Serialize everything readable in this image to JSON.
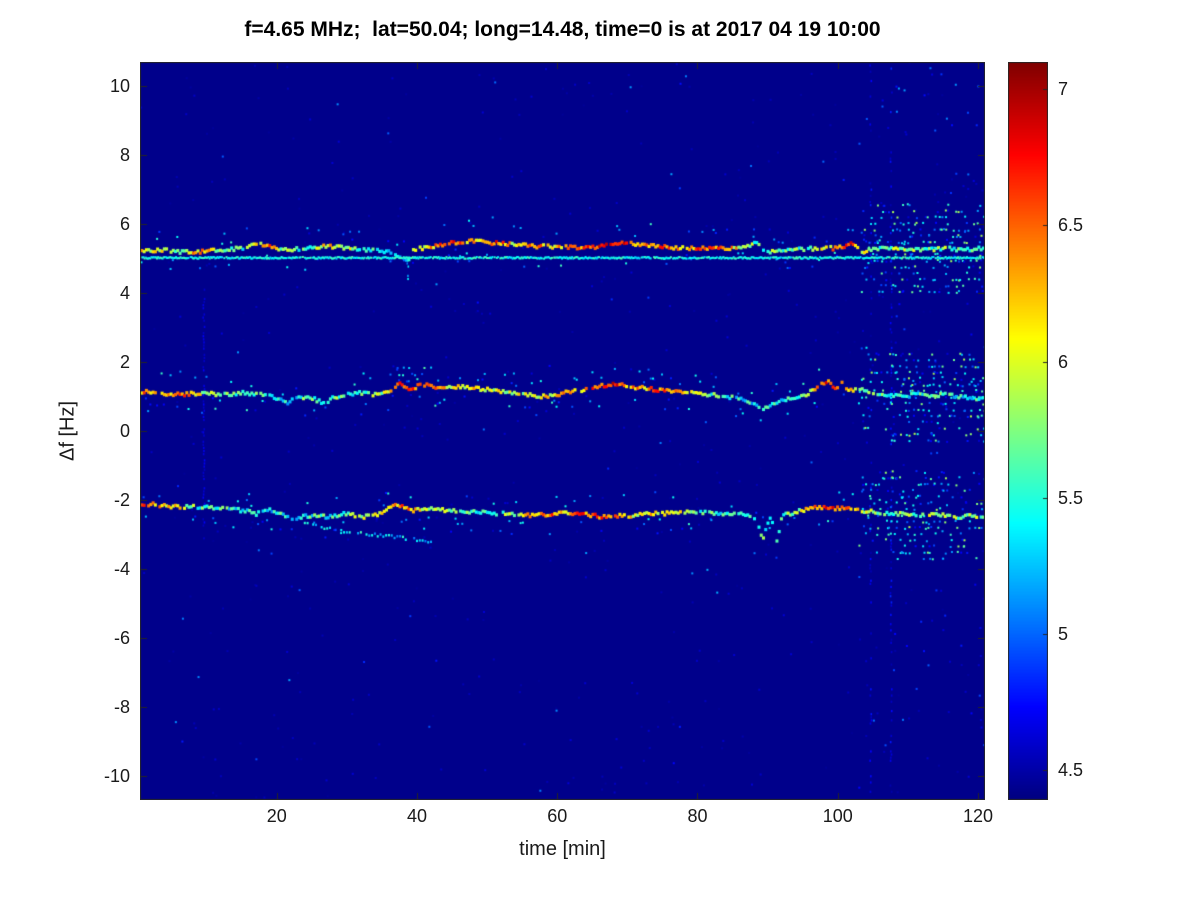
{
  "chart_data": {
    "type": "heatmap",
    "title": "f=4.65 MHz;  lat=50.04; long=14.48, time=0 is at 2017 04 19 10:00",
    "xlabel": "time [min]",
    "ylabel": "Δf [Hz]",
    "xlim": [
      0.5,
      121
    ],
    "ylim": [
      -10.7,
      10.7
    ],
    "x_tick_labels": [
      "20",
      "40",
      "60",
      "80",
      "100",
      "120"
    ],
    "x_tick_values": [
      20,
      40,
      60,
      80,
      100,
      120
    ],
    "y_tick_labels": [
      "10",
      "8",
      "6",
      "4",
      "2",
      "0",
      "-2",
      "-4",
      "-6",
      "-8",
      "-10"
    ],
    "y_tick_values": [
      10,
      8,
      6,
      4,
      2,
      0,
      -2,
      -4,
      -6,
      -8,
      -10
    ],
    "grid": false,
    "legend": "none",
    "colormap": "jet",
    "colorbar": {
      "position": "right",
      "min": 4.39,
      "max": 7.1,
      "tick_labels": [
        "4.5",
        "5",
        "5.5",
        "6",
        "6.5",
        "7"
      ],
      "tick_values": [
        4.5,
        5,
        5.5,
        6,
        6.5,
        7
      ]
    },
    "background_value": 4.42,
    "traces": [
      {
        "name": "upper-doppler-trace",
        "kind": "doppler",
        "points": [
          [
            0.7,
            5.2,
            6.2
          ],
          [
            3,
            5.25,
            6.0
          ],
          [
            6,
            5.2,
            5.8
          ],
          [
            9,
            5.2,
            6.3
          ],
          [
            12,
            5.25,
            5.8
          ],
          [
            15,
            5.3,
            5.6
          ],
          [
            17,
            5.45,
            6.0
          ],
          [
            19,
            5.35,
            6.4
          ],
          [
            21,
            5.25,
            5.7
          ],
          [
            24,
            5.3,
            5.6
          ],
          [
            27,
            5.35,
            6.2
          ],
          [
            30,
            5.3,
            5.9
          ],
          [
            33,
            5.25,
            5.6
          ],
          [
            36,
            5.2,
            5.5
          ],
          [
            37.5,
            5.05,
            5.4
          ],
          [
            38.5,
            4.9,
            5.3
          ],
          [
            39.5,
            5.25,
            5.8
          ],
          [
            42,
            5.35,
            6.3
          ],
          [
            45,
            5.45,
            6.5
          ],
          [
            48,
            5.5,
            6.2
          ],
          [
            51,
            5.45,
            6.6
          ],
          [
            54,
            5.4,
            6.0
          ],
          [
            57,
            5.35,
            6.4
          ],
          [
            60,
            5.35,
            6.2
          ],
          [
            63,
            5.3,
            6.5
          ],
          [
            66,
            5.35,
            6.6
          ],
          [
            69,
            5.45,
            6.8
          ],
          [
            72,
            5.4,
            6.3
          ],
          [
            75,
            5.35,
            6.5
          ],
          [
            78,
            5.3,
            6.2
          ],
          [
            81,
            5.3,
            6.6
          ],
          [
            84,
            5.3,
            6.3
          ],
          [
            87,
            5.35,
            5.9
          ],
          [
            88.5,
            5.45,
            5.6
          ],
          [
            89.5,
            5.15,
            5.5
          ],
          [
            91,
            5.25,
            5.7
          ],
          [
            94,
            5.25,
            5.6
          ],
          [
            97,
            5.3,
            5.8
          ],
          [
            100,
            5.3,
            6.4
          ],
          [
            102,
            5.45,
            6.7
          ],
          [
            103.5,
            5.2,
            6.0
          ],
          [
            106,
            5.3,
            5.7
          ],
          [
            109,
            5.3,
            5.9
          ],
          [
            112,
            5.25,
            5.6
          ],
          [
            115,
            5.3,
            5.7
          ],
          [
            118,
            5.25,
            5.6
          ],
          [
            120.7,
            5.3,
            5.8
          ]
        ]
      },
      {
        "name": "upper-carrier-line",
        "kind": "carrier",
        "df": 5.05,
        "value": 5.45,
        "t_range": [
          0.7,
          120.7
        ]
      },
      {
        "name": "middle-doppler-trace",
        "kind": "doppler",
        "points": [
          [
            0.7,
            1.15,
            6.4
          ],
          [
            3,
            1.1,
            6.2
          ],
          [
            6,
            1.05,
            6.5
          ],
          [
            9,
            1.1,
            6.0
          ],
          [
            12,
            1.05,
            5.7
          ],
          [
            15,
            1.1,
            5.5
          ],
          [
            18,
            1.05,
            5.6
          ],
          [
            20,
            0.95,
            5.5
          ],
          [
            21.5,
            0.8,
            5.4
          ],
          [
            23,
            1.0,
            5.5
          ],
          [
            25,
            0.95,
            5.6
          ],
          [
            26.5,
            0.8,
            5.5
          ],
          [
            28,
            0.95,
            5.7
          ],
          [
            30,
            1.05,
            5.6
          ],
          [
            32,
            1.1,
            5.5
          ],
          [
            34,
            1.05,
            5.8
          ],
          [
            36,
            1.15,
            6.0
          ],
          [
            37.5,
            1.4,
            6.5
          ],
          [
            39,
            1.2,
            6.8
          ],
          [
            40.5,
            1.35,
            6.4
          ],
          [
            42,
            1.3,
            6.6
          ],
          [
            44,
            1.25,
            6.2
          ],
          [
            46,
            1.3,
            6.0
          ],
          [
            48,
            1.25,
            6.3
          ],
          [
            50,
            1.2,
            6.1
          ],
          [
            52,
            1.15,
            5.9
          ],
          [
            54,
            1.1,
            6.0
          ],
          [
            56,
            1.05,
            5.8
          ],
          [
            58,
            1.0,
            6.0
          ],
          [
            60,
            1.05,
            6.2
          ],
          [
            62,
            1.15,
            6.4
          ],
          [
            64,
            1.2,
            6.3
          ],
          [
            66,
            1.3,
            6.6
          ],
          [
            68,
            1.35,
            6.8
          ],
          [
            70,
            1.3,
            6.4
          ],
          [
            72,
            1.25,
            6.2
          ],
          [
            74,
            1.2,
            6.5
          ],
          [
            76,
            1.15,
            6.3
          ],
          [
            78,
            1.15,
            6.0
          ],
          [
            80,
            1.1,
            5.8
          ],
          [
            82,
            1.05,
            5.6
          ],
          [
            84,
            1.0,
            5.5
          ],
          [
            86,
            0.95,
            5.4
          ],
          [
            88,
            0.8,
            5.4
          ],
          [
            89.5,
            0.65,
            5.5
          ],
          [
            91,
            0.8,
            5.4
          ],
          [
            93,
            0.95,
            5.5
          ],
          [
            95,
            1.0,
            5.7
          ],
          [
            97,
            1.25,
            6.2
          ],
          [
            98.5,
            1.45,
            6.6
          ],
          [
            99.5,
            1.2,
            6.8
          ],
          [
            100.5,
            1.4,
            6.5
          ],
          [
            101.5,
            1.15,
            6.3
          ],
          [
            103,
            1.2,
            6.0
          ],
          [
            105,
            1.1,
            5.6
          ],
          [
            107,
            1.05,
            5.5
          ],
          [
            109,
            1.0,
            5.4
          ],
          [
            111,
            1.05,
            5.5
          ],
          [
            113,
            1.0,
            5.4
          ],
          [
            115,
            1.05,
            5.5
          ],
          [
            117,
            1.0,
            5.4
          ],
          [
            119,
            0.95,
            5.5
          ],
          [
            120.7,
            0.95,
            5.4
          ]
        ]
      },
      {
        "name": "lower-doppler-trace",
        "kind": "doppler",
        "points": [
          [
            0.7,
            -2.1,
            6.4
          ],
          [
            3,
            -2.15,
            6.2
          ],
          [
            6,
            -2.2,
            6.0
          ],
          [
            9,
            -2.2,
            5.6
          ],
          [
            12,
            -2.25,
            5.5
          ],
          [
            15,
            -2.3,
            5.4
          ],
          [
            17,
            -2.4,
            5.5
          ],
          [
            19,
            -2.3,
            5.4
          ],
          [
            21,
            -2.45,
            5.5
          ],
          [
            22.5,
            -2.55,
            5.4
          ],
          [
            24,
            -2.45,
            5.5
          ],
          [
            26,
            -2.5,
            5.6
          ],
          [
            28,
            -2.45,
            5.5
          ],
          [
            30,
            -2.4,
            5.6
          ],
          [
            32,
            -2.5,
            5.9
          ],
          [
            34,
            -2.45,
            6.2
          ],
          [
            36,
            -2.25,
            6.0
          ],
          [
            37,
            -2.1,
            6.3
          ],
          [
            38,
            -2.2,
            6.5
          ],
          [
            39.5,
            -2.3,
            6.2
          ],
          [
            41,
            -2.25,
            6.0
          ],
          [
            43,
            -2.3,
            5.8
          ],
          [
            45,
            -2.3,
            5.6
          ],
          [
            47,
            -2.35,
            5.7
          ],
          [
            49,
            -2.35,
            5.5
          ],
          [
            51,
            -2.4,
            5.6
          ],
          [
            53,
            -2.4,
            5.8
          ],
          [
            55,
            -2.45,
            6.0
          ],
          [
            57,
            -2.45,
            6.3
          ],
          [
            59,
            -2.4,
            6.5
          ],
          [
            61,
            -2.35,
            6.2
          ],
          [
            63,
            -2.4,
            6.6
          ],
          [
            65,
            -2.45,
            6.4
          ],
          [
            67,
            -2.5,
            6.6
          ],
          [
            69,
            -2.45,
            6.3
          ],
          [
            71,
            -2.45,
            6.0
          ],
          [
            73,
            -2.4,
            6.2
          ],
          [
            75,
            -2.4,
            5.9
          ],
          [
            77,
            -2.35,
            6.0
          ],
          [
            79,
            -2.35,
            5.7
          ],
          [
            81,
            -2.35,
            5.6
          ],
          [
            83,
            -2.4,
            5.5
          ],
          [
            85,
            -2.4,
            5.6
          ],
          [
            87,
            -2.45,
            5.5
          ],
          [
            88.5,
            -2.6,
            5.5
          ],
          [
            89.2,
            -3.2,
            5.6
          ],
          [
            89.8,
            -2.7,
            5.4
          ],
          [
            90.5,
            -2.5,
            5.5
          ],
          [
            91.2,
            -3.3,
            5.5
          ],
          [
            92,
            -2.45,
            5.6
          ],
          [
            94,
            -2.35,
            5.8
          ],
          [
            96,
            -2.25,
            6.2
          ],
          [
            98,
            -2.2,
            6.5
          ],
          [
            100,
            -2.25,
            6.6
          ],
          [
            101.5,
            -2.2,
            6.3
          ],
          [
            103,
            -2.3,
            6.0
          ],
          [
            105,
            -2.35,
            5.7
          ],
          [
            107,
            -2.4,
            5.6
          ],
          [
            109,
            -2.4,
            5.8
          ],
          [
            111,
            -2.45,
            5.6
          ],
          [
            113,
            -2.4,
            5.9
          ],
          [
            115,
            -2.45,
            6.0
          ],
          [
            117,
            -2.5,
            5.7
          ],
          [
            119,
            -2.45,
            5.8
          ],
          [
            120.7,
            -2.5,
            5.9
          ]
        ]
      },
      {
        "name": "lower-secondary-branch",
        "kind": "branch",
        "points": [
          [
            24,
            -2.7,
            5.2
          ],
          [
            27,
            -2.8,
            5.3
          ],
          [
            30,
            -2.9,
            5.2
          ],
          [
            33,
            -3.0,
            5.4
          ],
          [
            36,
            -3.05,
            5.3
          ],
          [
            38,
            -3.1,
            5.4
          ],
          [
            40,
            -3.15,
            5.3
          ],
          [
            42,
            -3.2,
            5.2
          ]
        ]
      }
    ],
    "artifacts": {
      "background_speckle": {
        "count_dim": 500,
        "value_range_dim": [
          4.45,
          4.62
        ],
        "count_bright": 70,
        "value_range_bright": [
          4.7,
          5.2
        ]
      },
      "vertical_lines": [
        {
          "t": 9.5,
          "df_range": [
            -2.8,
            4.2
          ],
          "density": 0.65,
          "value_range": [
            4.55,
            4.72
          ]
        },
        {
          "t": 38.6,
          "df_range": [
            4.35,
            5.1
          ],
          "density": 0.7,
          "value_range": [
            5.0,
            5.6
          ]
        },
        {
          "t": 104.6,
          "df_range": [
            -10.7,
            10.7
          ],
          "density": 0.18,
          "value_range": [
            4.5,
            4.8
          ]
        },
        {
          "t": 107.5,
          "df_range": [
            -10.7,
            10.7
          ],
          "density": 0.3,
          "value_range": [
            4.5,
            4.85
          ]
        }
      ],
      "speckle_regions": [
        {
          "t_range": [
            103,
            121
          ],
          "df_range": [
            -10.7,
            10.7
          ],
          "density": 0.012,
          "value_range": [
            4.5,
            5.1
          ],
          "near_traces_band": 1.3,
          "near_traces_density": 0.22,
          "near_traces_value_range": [
            4.6,
            5.9
          ]
        },
        {
          "t_range": [
            37,
            43
          ],
          "df_range": [
            1.3,
            1.95
          ],
          "density": 0.1,
          "value_range": [
            4.8,
            5.7
          ]
        }
      ]
    }
  }
}
